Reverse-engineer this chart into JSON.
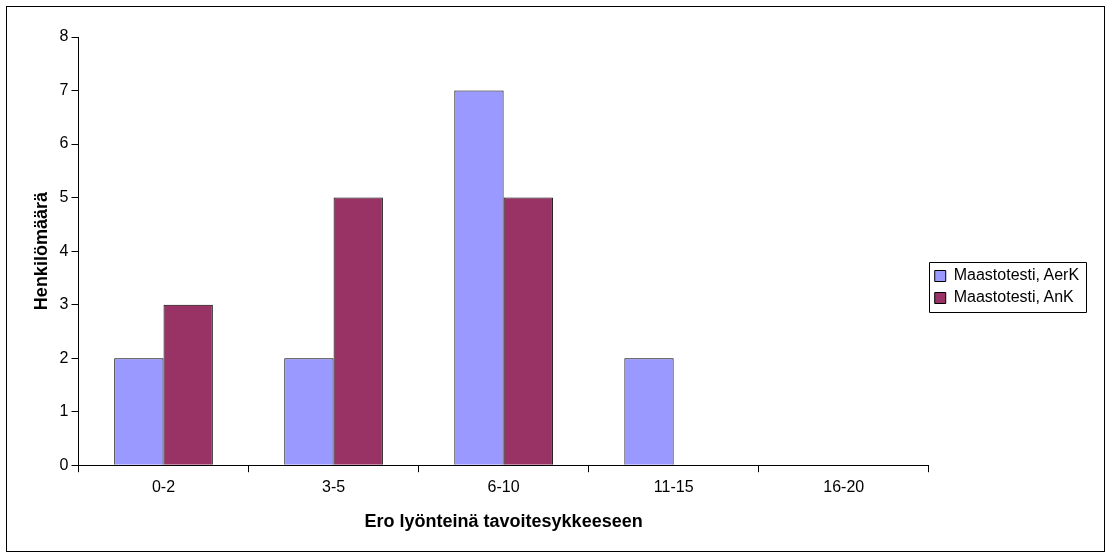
{
  "chart_data": {
    "type": "bar",
    "xlabel": "Ero lyönteinä tavoitesykkeeseen",
    "ylabel": "Henkilömäärä",
    "categories": [
      "0-2",
      "3-5",
      "6-10",
      "11-15",
      "16-20"
    ],
    "series": [
      {
        "name": "Maastotesti, AerK",
        "color": "#9999ff",
        "values": [
          2,
          2,
          7,
          2,
          0
        ]
      },
      {
        "name": "Maastotesti, AnK",
        "color": "#993366",
        "values": [
          3,
          5,
          5,
          0,
          0
        ]
      }
    ],
    "ylim": [
      0,
      8
    ],
    "yticks": [
      0,
      1,
      2,
      3,
      4,
      5,
      6,
      7,
      8
    ],
    "grid": false,
    "legend": "right"
  }
}
